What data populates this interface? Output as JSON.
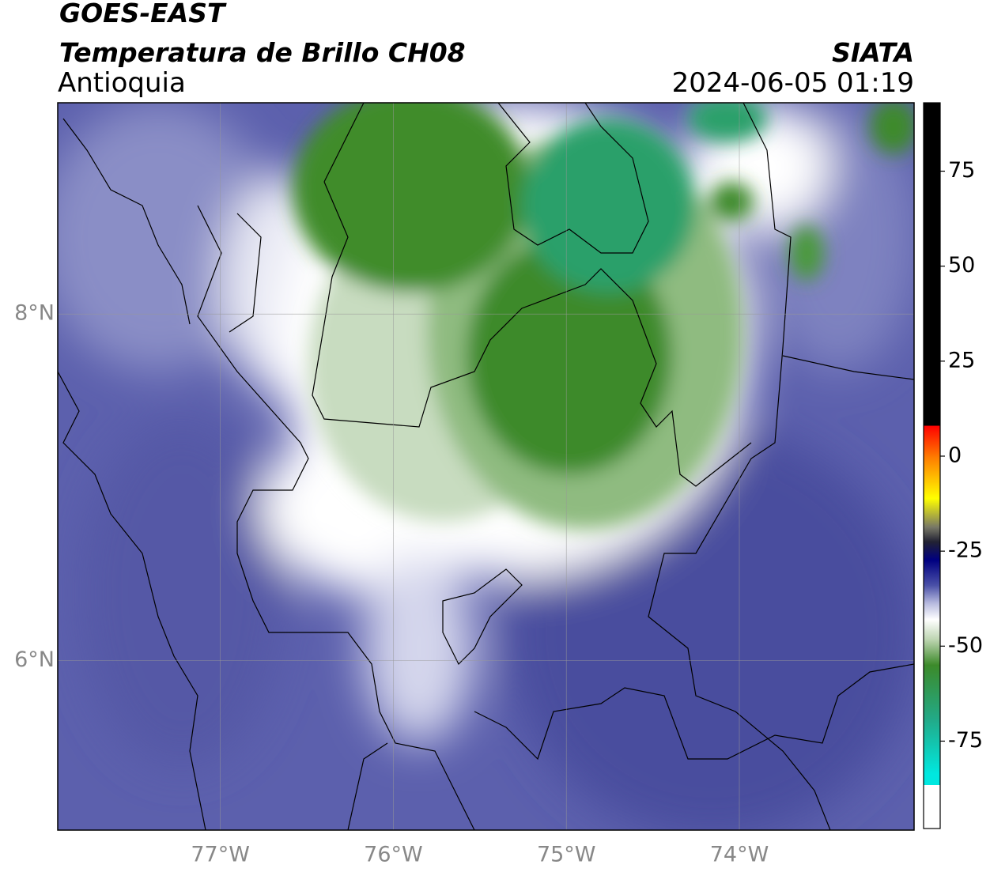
{
  "header": {
    "title": "GOES-EAST",
    "subtitle": "Temperatura de Brillo CH08",
    "region": "Antioquia",
    "source": "SIATA",
    "timestamp": "2024-06-05 01:19"
  },
  "map": {
    "xlim": [
      -77.94,
      -72.99
    ],
    "ylim": [
      5.02,
      9.22
    ],
    "xticks": [
      {
        "value": -77,
        "label": "77°W"
      },
      {
        "value": -76,
        "label": "76°W"
      },
      {
        "value": -75,
        "label": "75°W"
      },
      {
        "value": -74,
        "label": "74°W"
      }
    ],
    "yticks": [
      {
        "value": 6,
        "label": "6°N"
      },
      {
        "value": 8,
        "label": "8°N"
      }
    ],
    "grid": true
  },
  "colorbar": {
    "ylim": [
      -98,
      93
    ],
    "yticks": [
      -75,
      -50,
      -25,
      0,
      25,
      50,
      75
    ]
  }
}
